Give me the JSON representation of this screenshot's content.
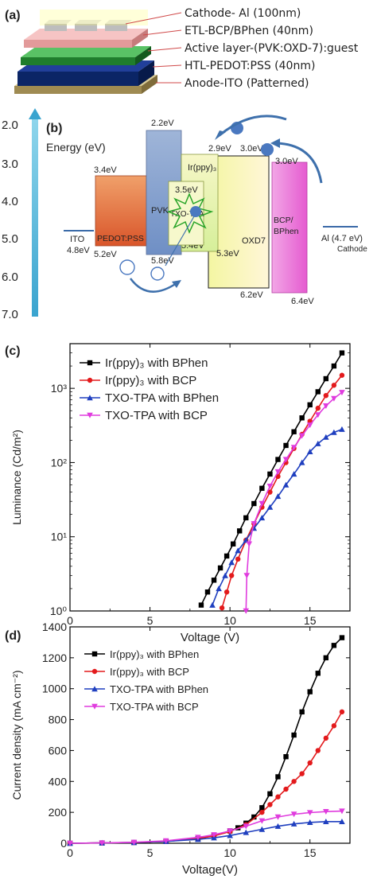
{
  "panels": {
    "a": {
      "label": "(a)",
      "layers": [
        "Cathode- Al (100nm)",
        "ETL-BCP/BPhen (40nm)",
        "Active layer-(PVK:OXD-7):guest",
        "HTL-PEDOT:PSS (40nm)",
        "Anode-ITO (Patterned)"
      ],
      "colors": [
        "#c9c9c9",
        "#e8a3a3",
        "#2f8f3a",
        "#0d2b7a",
        "#b7a46e"
      ]
    },
    "b": {
      "label": "(b)",
      "axis_title": "Energy (eV)",
      "ticks": [
        "2.0",
        "3.0",
        "4.0",
        "5.0",
        "6.0",
        "7.0"
      ],
      "blocks": {
        "ito": {
          "name": "ITO",
          "level": "4.8eV"
        },
        "pedot": {
          "name": "PEDOT:PSS",
          "top": "3.4eV",
          "bottom": "5.2eV"
        },
        "pvk": {
          "name": "PVK",
          "top": "2.2eV",
          "bottom": "5.8eV"
        },
        "irppy": {
          "name": "Ir(ppy)₃",
          "top": "2.9eV",
          "bottom": "5.4eV"
        },
        "txo": {
          "name": "TXO-TPA",
          "top": "3.5eV"
        },
        "oxd": {
          "name": "OXD7",
          "top": "3.0eV",
          "bottom": "6.2eV"
        },
        "oxd_bottom_left": "5.3eV",
        "bcp": {
          "name1": "BCP/",
          "name2": "BPhen",
          "top": "3.0eV",
          "bottom": "6.4eV"
        },
        "al": {
          "name": "Al (4.7 eV)",
          "sub": "Cathode"
        }
      }
    }
  },
  "chart_data": [
    {
      "type": "line",
      "panel_label": "(c)",
      "xlabel": "Voltage (V)",
      "ylabel": "Luminance (Cd/m²)",
      "xlim": [
        0,
        17.5
      ],
      "ylim": [
        1,
        4000
      ],
      "yscale": "log",
      "xticks": [
        "0",
        "5",
        "10",
        "15"
      ],
      "yticks": [
        "10⁰",
        "10¹",
        "10²",
        "10³"
      ],
      "legend_position": "top-left",
      "series": [
        {
          "name": "Ir(ppy)₃ with BPhen",
          "color": "#000000",
          "marker": "square",
          "x": [
            8.2,
            8.6,
            9.0,
            9.4,
            9.8,
            10.2,
            10.6,
            11.0,
            11.5,
            12.0,
            12.5,
            13.0,
            13.5,
            14.0,
            14.5,
            15.0,
            15.5,
            16.0,
            16.5,
            17.0
          ],
          "y": [
            1.2,
            1.8,
            2.6,
            3.8,
            5.5,
            8,
            12,
            18,
            28,
            45,
            70,
            110,
            170,
            260,
            400,
            600,
            900,
            1350,
            2000,
            3000
          ]
        },
        {
          "name": "Ir(ppy)₃ with BCP",
          "color": "#e31a1c",
          "marker": "circle",
          "x": [
            9.5,
            9.8,
            10.1,
            10.5,
            11.0,
            11.5,
            12.0,
            12.5,
            13.0,
            13.5,
            14.0,
            14.5,
            15.0,
            15.5,
            16.0,
            16.5,
            17.0
          ],
          "y": [
            1.1,
            1.8,
            3,
            5,
            9,
            15,
            25,
            40,
            65,
            100,
            155,
            240,
            360,
            540,
            800,
            1100,
            1500
          ]
        },
        {
          "name": "TXO-TPA with BPhen",
          "color": "#1f3fbf",
          "marker": "triangle-up",
          "x": [
            8.9,
            9.3,
            9.7,
            10.1,
            10.5,
            11.0,
            11.5,
            12.0,
            12.5,
            13.0,
            13.5,
            14.0,
            14.5,
            15.0,
            15.5,
            16.0,
            16.5,
            17.0
          ],
          "y": [
            1.2,
            2,
            3,
            4.5,
            6.5,
            9,
            13,
            18,
            25,
            35,
            50,
            70,
            100,
            140,
            180,
            220,
            255,
            280
          ]
        },
        {
          "name": "TXO-TPA with BCP",
          "color": "#e03cde",
          "marker": "triangle-down",
          "x": [
            11.0,
            11.05,
            11.2,
            11.5,
            12.0,
            12.5,
            13.0,
            13.5,
            14.0,
            14.5,
            15.0,
            15.5,
            16.0,
            16.5,
            17.0
          ],
          "y": [
            1,
            3,
            8,
            15,
            28,
            48,
            75,
            110,
            160,
            230,
            320,
            440,
            580,
            730,
            880
          ]
        }
      ]
    },
    {
      "type": "line",
      "panel_label": "(d)",
      "xlabel": "Voltage(V)",
      "ylabel": "Current density (mA cm⁻²)",
      "xlim": [
        0,
        17.5
      ],
      "ylim": [
        0,
        1400
      ],
      "xticks": [
        "0",
        "5",
        "10",
        "15"
      ],
      "yticks": [
        "0",
        "200",
        "400",
        "600",
        "800",
        "1000",
        "1200",
        "1400"
      ],
      "legend_position": "top-left",
      "series": [
        {
          "name": "Ir(ppy)₃ with BPhen",
          "color": "#000000",
          "marker": "square",
          "x": [
            0,
            2,
            4,
            6,
            8,
            9,
            10,
            10.5,
            11,
            11.5,
            12,
            12.5,
            13,
            13.5,
            14,
            14.5,
            15,
            15.5,
            16,
            16.5,
            17
          ],
          "y": [
            0,
            2,
            5,
            12,
            30,
            50,
            80,
            100,
            130,
            170,
            230,
            320,
            430,
            560,
            700,
            850,
            980,
            1100,
            1200,
            1280,
            1330
          ]
        },
        {
          "name": "Ir(ppy)₃ with BCP",
          "color": "#e31a1c",
          "marker": "circle",
          "x": [
            0,
            2,
            4,
            6,
            8,
            9,
            10,
            11,
            12,
            12.5,
            13,
            13.5,
            14,
            14.5,
            15,
            15.5,
            16,
            16.5,
            17
          ],
          "y": [
            0,
            2,
            5,
            12,
            30,
            48,
            75,
            120,
            200,
            250,
            300,
            350,
            400,
            450,
            520,
            600,
            680,
            760,
            850
          ]
        },
        {
          "name": "TXO-TPA with BPhen",
          "color": "#1f3fbf",
          "marker": "triangle-up",
          "x": [
            0,
            2,
            4,
            6,
            8,
            9,
            10,
            11,
            12,
            13,
            14,
            15,
            16,
            17
          ],
          "y": [
            0,
            2,
            5,
            12,
            25,
            35,
            50,
            70,
            90,
            110,
            125,
            135,
            140,
            140
          ]
        },
        {
          "name": "TXO-TPA with BCP",
          "color": "#e03cde",
          "marker": "triangle-down",
          "x": [
            0,
            2,
            4,
            6,
            8,
            9,
            10,
            11,
            12,
            13,
            14,
            15,
            16,
            17
          ],
          "y": [
            0,
            2,
            6,
            16,
            38,
            55,
            80,
            110,
            145,
            170,
            188,
            198,
            205,
            208
          ]
        }
      ]
    }
  ]
}
